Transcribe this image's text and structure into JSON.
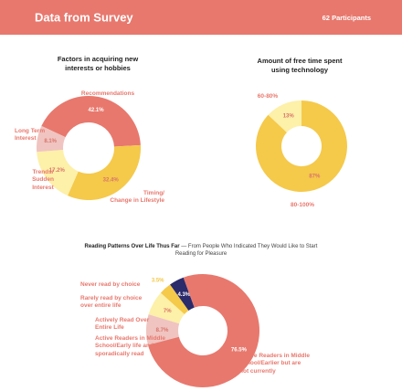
{
  "header": {
    "title": "Data from Survey",
    "participants": "62 Participants"
  },
  "chart_data": [
    {
      "type": "pie",
      "donut": true,
      "title": "Factors in acquiring new\ninterests or hobbies",
      "categories": [
        "Recommendations",
        "Timing/\nChange in Lifestyle",
        "Trends/\nSudden\nInterest",
        "Long Term\nInterest"
      ],
      "values": [
        42.1,
        32.4,
        17.2,
        8.1
      ],
      "value_labels": [
        "42.1%",
        "32.4%",
        "17.2%",
        "8.1%"
      ],
      "colors": [
        "#e8786d",
        "#f5c94a",
        "#fdf0a8",
        "#f0c4c0"
      ]
    },
    {
      "type": "pie",
      "donut": true,
      "title": "Amount of free time spent\nusing technology",
      "categories": [
        "80-100%",
        "60-80%"
      ],
      "values": [
        87,
        13
      ],
      "value_labels": [
        "87%",
        "13%"
      ],
      "colors": [
        "#f5c94a",
        "#fdf0a8"
      ]
    },
    {
      "type": "pie",
      "donut": true,
      "title": "Reading Patterns Over Life Thus Far",
      "subtitle": "— From People Who Indicated They Would Like to Start Reading for Pleasure",
      "categories": [
        "Never read by choice",
        "Rarely read by choice\nover entire life",
        "Actively Read Over\nEntire Life",
        "Active Readers in Middle\nSchool/Early life and now\nsporadically read",
        "Active Readers in Middle\nSchool/Earlier but are\nnot currently"
      ],
      "values": [
        4.3,
        3.5,
        7,
        8.7,
        76.5
      ],
      "value_labels": [
        "4.3%",
        "3.5%",
        "7%",
        "8.7%",
        "76.5%"
      ],
      "colors": [
        "#2b2a6b",
        "#f5c94a",
        "#fdf0a8",
        "#f0c4c0",
        "#e8786d"
      ]
    }
  ]
}
